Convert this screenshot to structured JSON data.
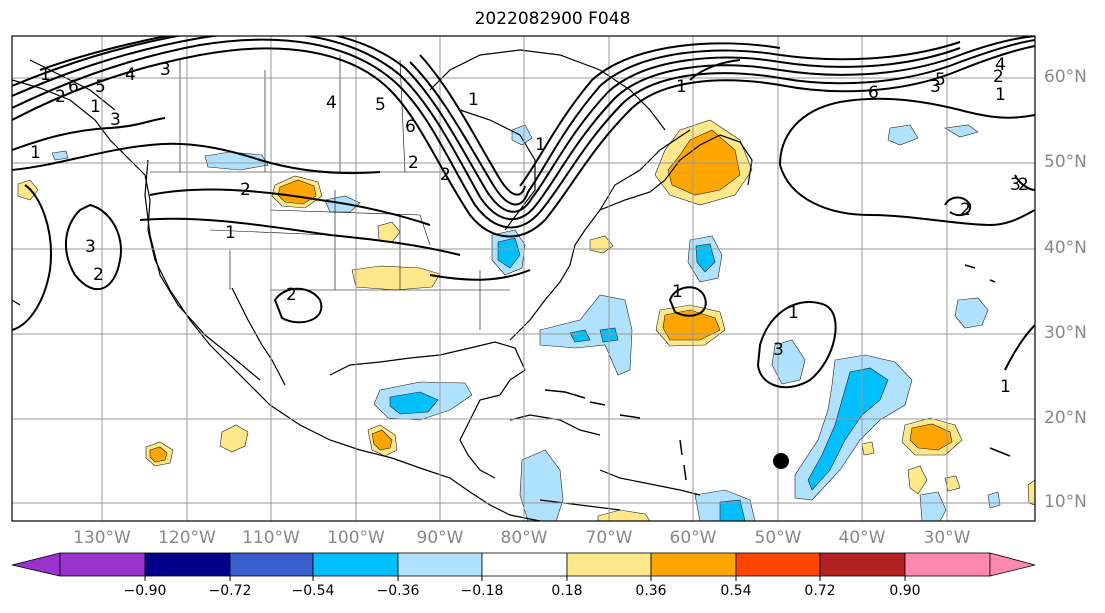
{
  "title": "2022082900 F048",
  "map": {
    "lon_ticks": [
      "130°W",
      "120°W",
      "110°W",
      "100°W",
      "90°W",
      "80°W",
      "70°W",
      "60°W",
      "50°W",
      "40°W",
      "30°W"
    ],
    "lat_ticks": [
      "60°N",
      "50°N",
      "40°N",
      "30°N",
      "20°N",
      "10°N"
    ],
    "contour_labels": [
      "1",
      "2",
      "3",
      "4",
      "5",
      "6",
      "1",
      "2",
      "3",
      "4",
      "5",
      "6",
      "1",
      "2",
      "3",
      "1",
      "2",
      "3",
      "4",
      "5",
      "6",
      "2",
      "1",
      "3",
      "2",
      "1",
      "2",
      "1",
      "2",
      "1",
      "1",
      "2",
      "1",
      "3",
      "1"
    ],
    "storm_marker": {
      "lon": -50.0,
      "lat": 15.0,
      "color": "#000000"
    }
  },
  "colorbar": {
    "labels": [
      "−0.90",
      "−0.72",
      "−0.54",
      "−0.36",
      "−0.18",
      "0.18",
      "0.36",
      "0.54",
      "0.72",
      "0.90"
    ],
    "colors": [
      "#9a32cd",
      "#00008b",
      "#3a5fcd",
      "#00bfff",
      "#b0e2ff",
      "#ffffff",
      "#ffe88a",
      "#ffa500",
      "#ff4500",
      "#b22222",
      "#ff88b0"
    ]
  }
}
